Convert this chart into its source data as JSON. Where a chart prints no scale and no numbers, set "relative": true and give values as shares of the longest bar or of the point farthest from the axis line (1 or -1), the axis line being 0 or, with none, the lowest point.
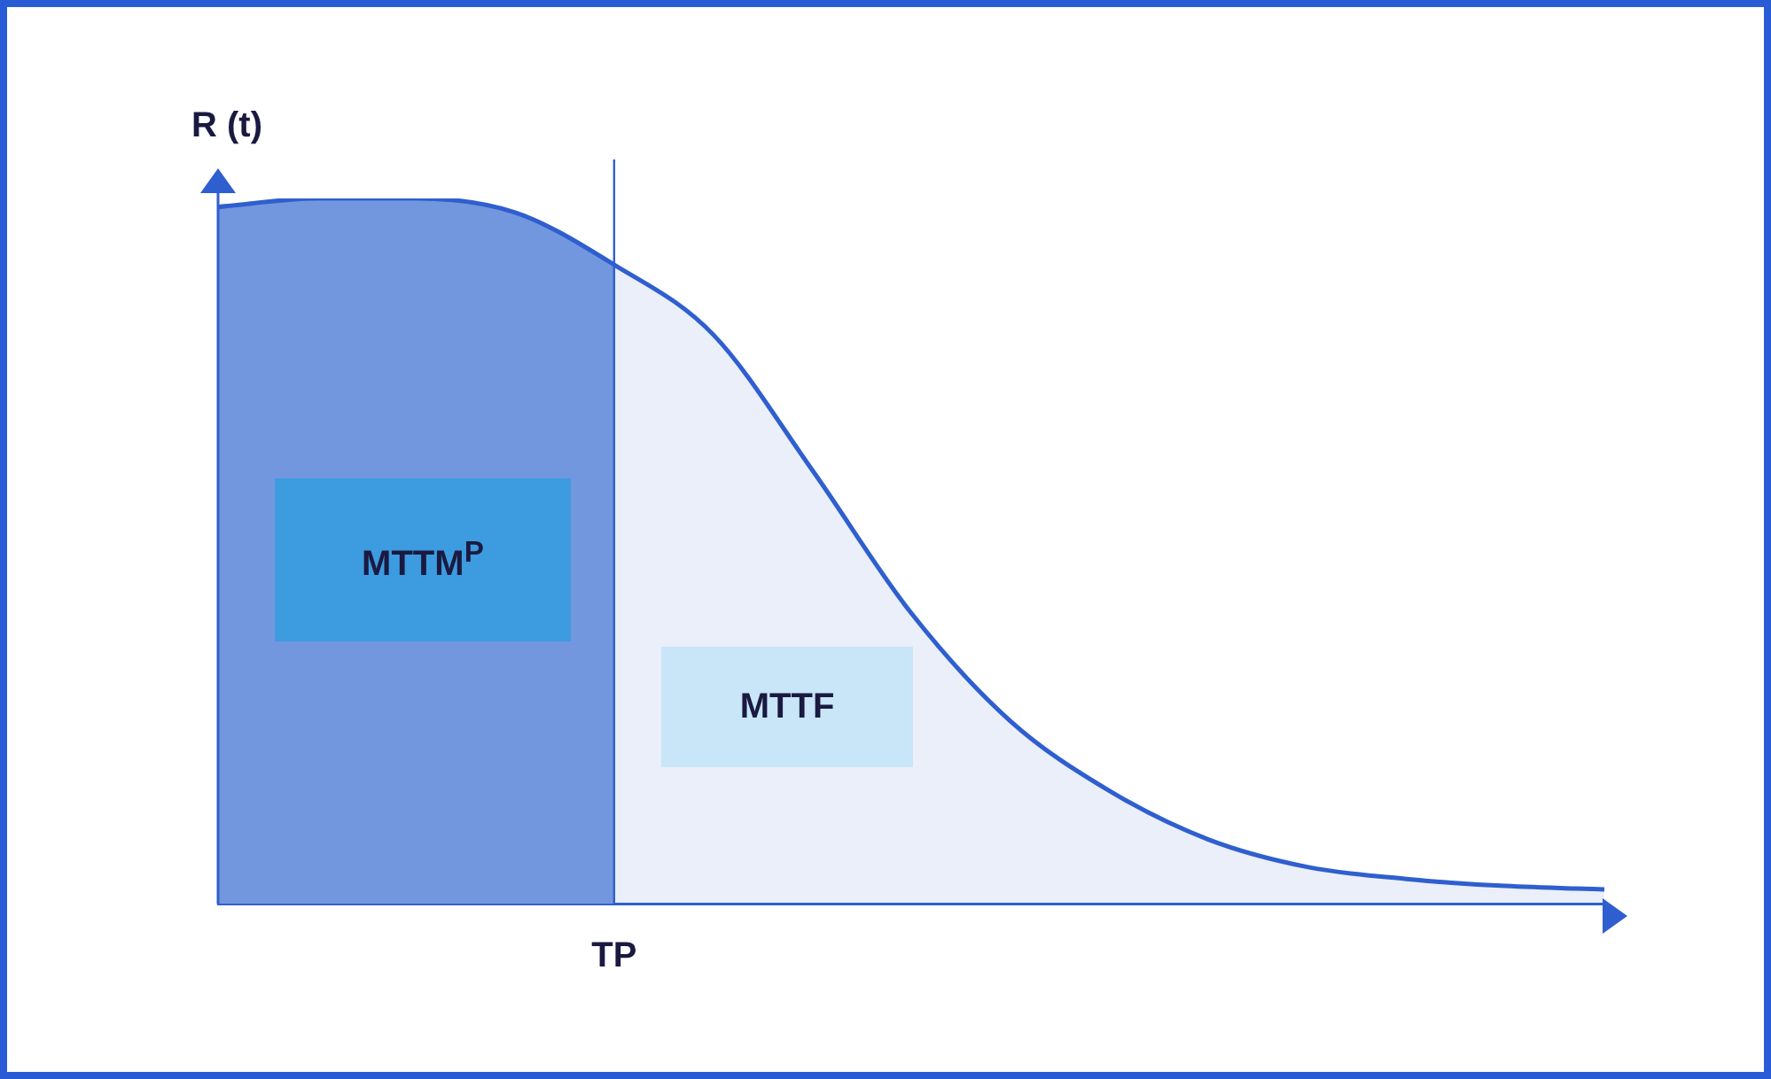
{
  "chart_data": {
    "type": "area",
    "relative": true,
    "ylabel": "R (t)",
    "categories": [
      null,
      null,
      null,
      null,
      null,
      null,
      null,
      null,
      null,
      null,
      null,
      null,
      null,
      null,
      null
    ],
    "series": [
      {
        "color": "#7b9de0",
        "values": [
          0.988,
          1,
          1,
          0.98,
          0.906,
          null,
          null,
          null,
          null,
          null,
          null,
          null,
          null,
          null,
          null
        ]
      },
      {
        "color": "#2f5fcf",
        "values": [
          0.988,
          1,
          1,
          0.98,
          0.906,
          0.807,
          0.615,
          0.412,
          0.259,
          0.16,
          0.091,
          0.052,
          0.035,
          0.025,
          0.02
        ]
      }
    ],
    "annotations": [
      "MTTM$^{P}$",
      "MTTF",
      "TP"
    ],
    "grid": false,
    "legend": false,
    "marker": "none",
    "line_style": "solid"
  }
}
